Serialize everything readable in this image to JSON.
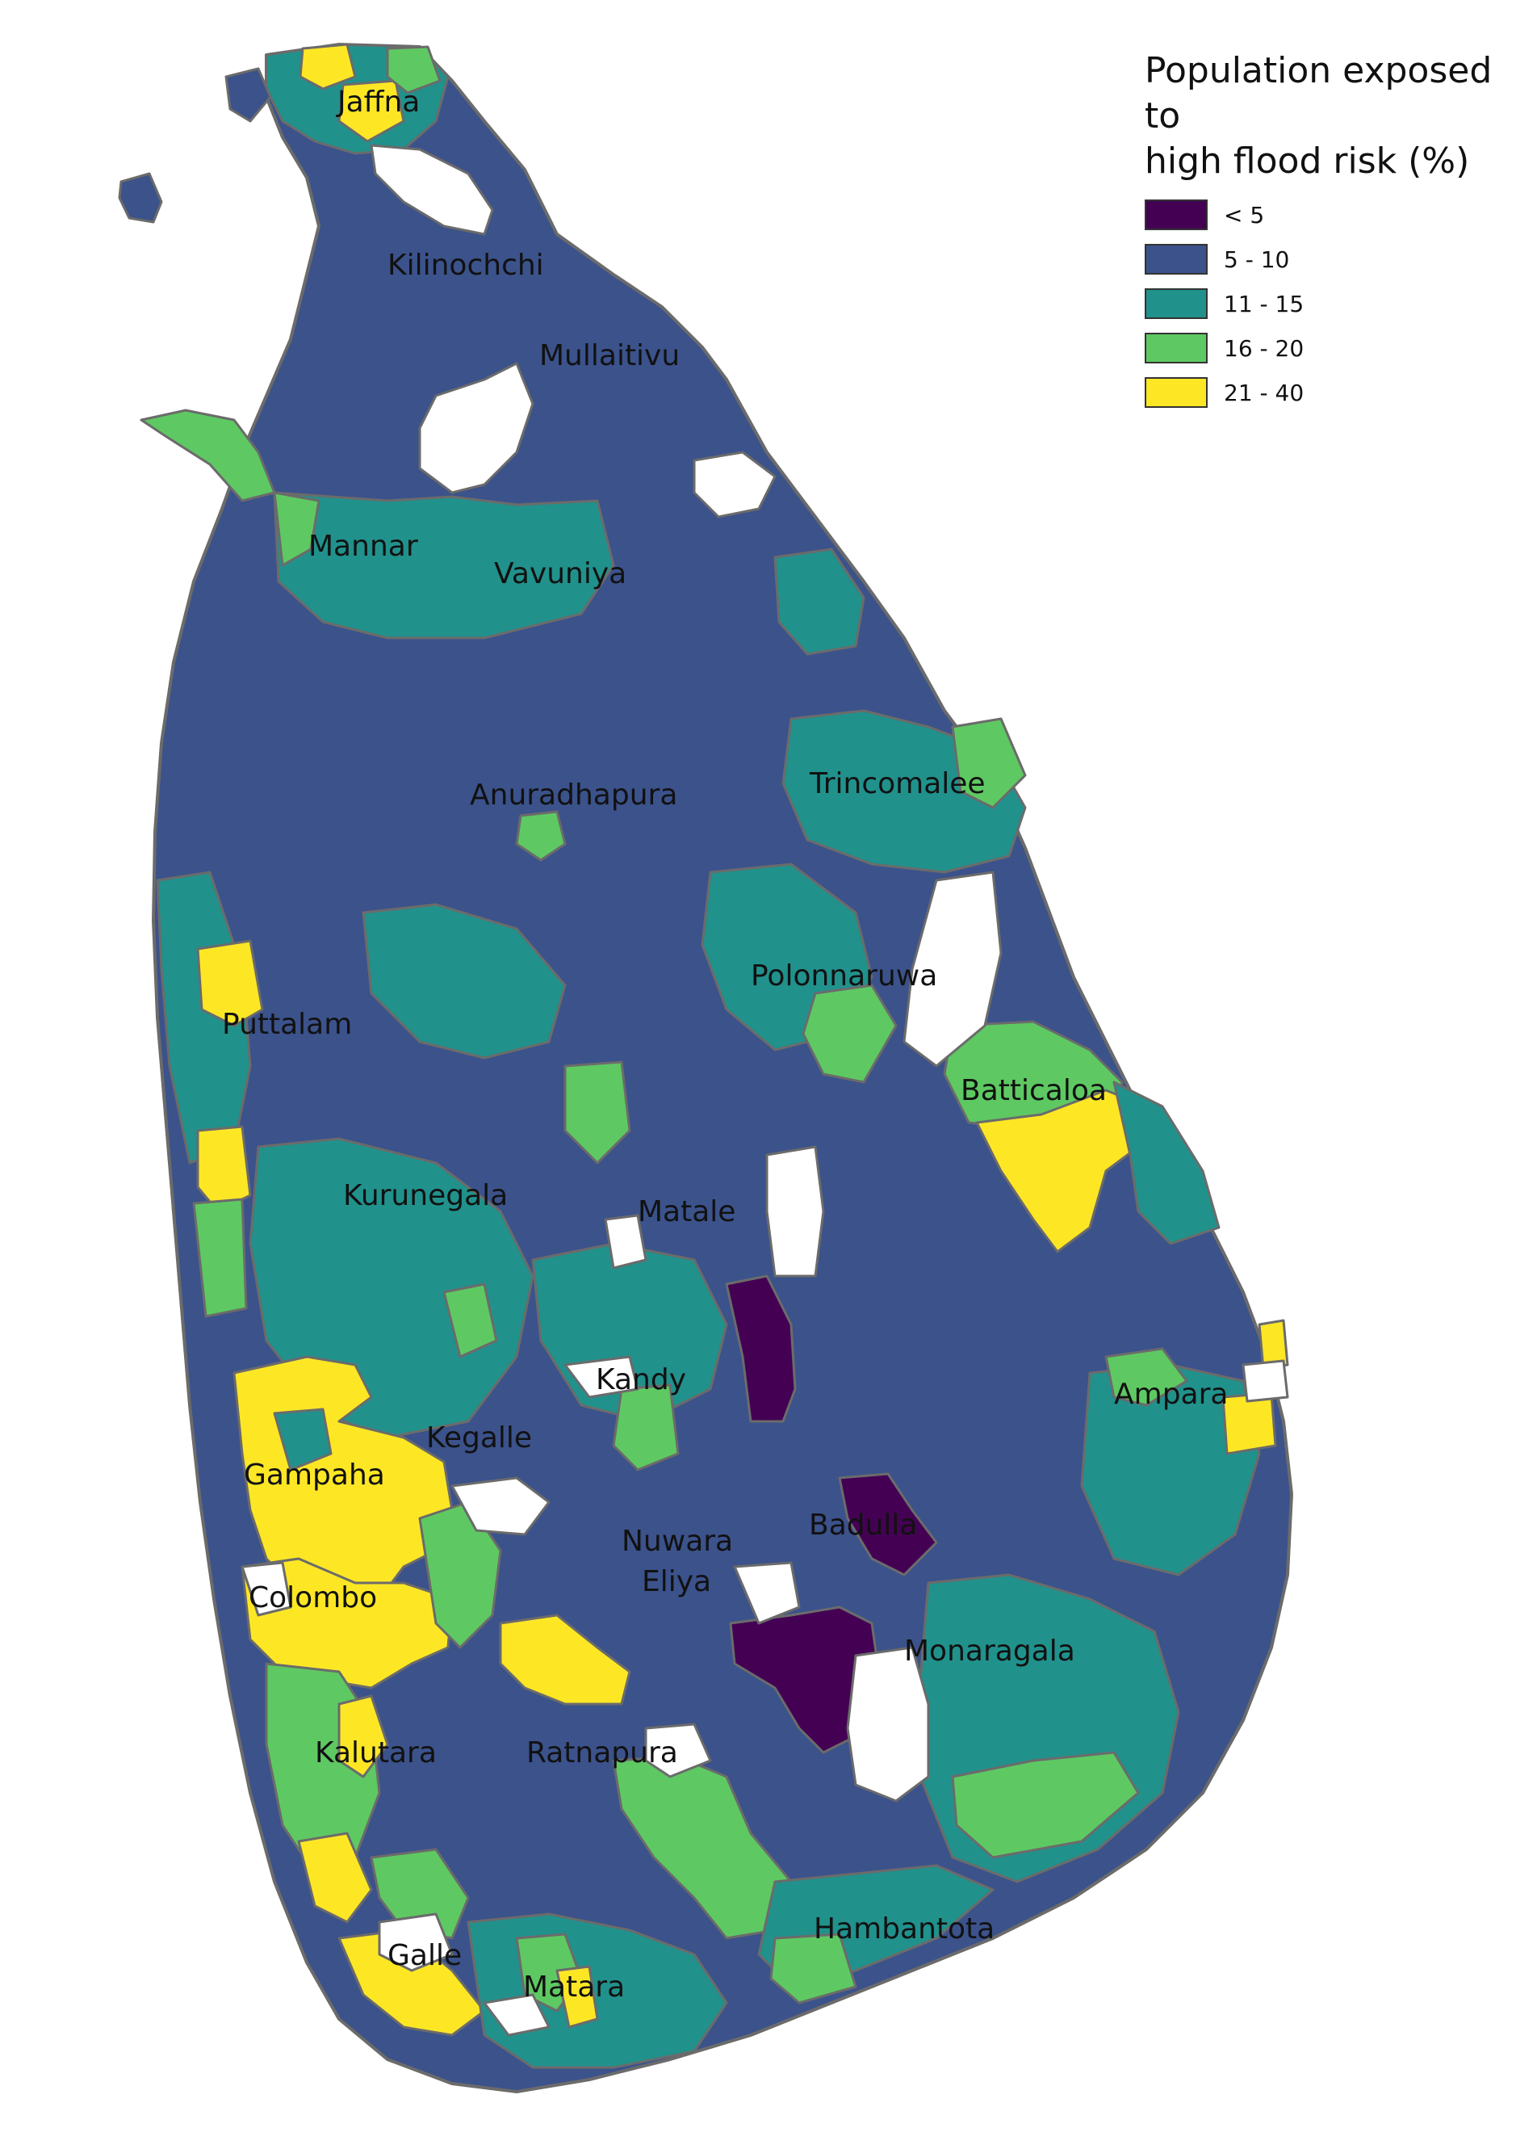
{
  "legend": {
    "title_line1": "Population exposed to",
    "title_line2": "high flood risk (%)",
    "items": [
      {
        "label": "< 5",
        "color": "#440154"
      },
      {
        "label": "5 - 10",
        "color": "#3b528b"
      },
      {
        "label": "11 - 15",
        "color": "#21918c"
      },
      {
        "label": "16 - 20",
        "color": "#5ec962"
      },
      {
        "label": "21 - 40",
        "color": "#fde725"
      }
    ]
  },
  "districts": {
    "jaffna": "Jaffna",
    "kilinochchi": "Kilinochchi",
    "mullaitivu": "Mullaitivu",
    "mannar": "Mannar",
    "vavuniya": "Vavuniya",
    "anuradhapura": "Anuradhapura",
    "trincomalee": "Trincomalee",
    "polonnaruwa": "Polonnaruwa",
    "puttalam": "Puttalam",
    "batticaloa": "Batticaloa",
    "kurunegala": "Kurunegala",
    "matale": "Matale",
    "kandy": "Kandy",
    "ampara": "Ampara",
    "kegalle": "Kegalle",
    "gampaha": "Gampaha",
    "badulla": "Badulla",
    "nuwara_eliya_1": "Nuwara",
    "nuwara_eliya_2": "Eliya",
    "colombo": "Colombo",
    "monaragala": "Monaragala",
    "kalutara": "Kalutara",
    "ratnapura": "Ratnapura",
    "hambantota": "Hambantota",
    "galle": "Galle",
    "matara": "Matara"
  }
}
